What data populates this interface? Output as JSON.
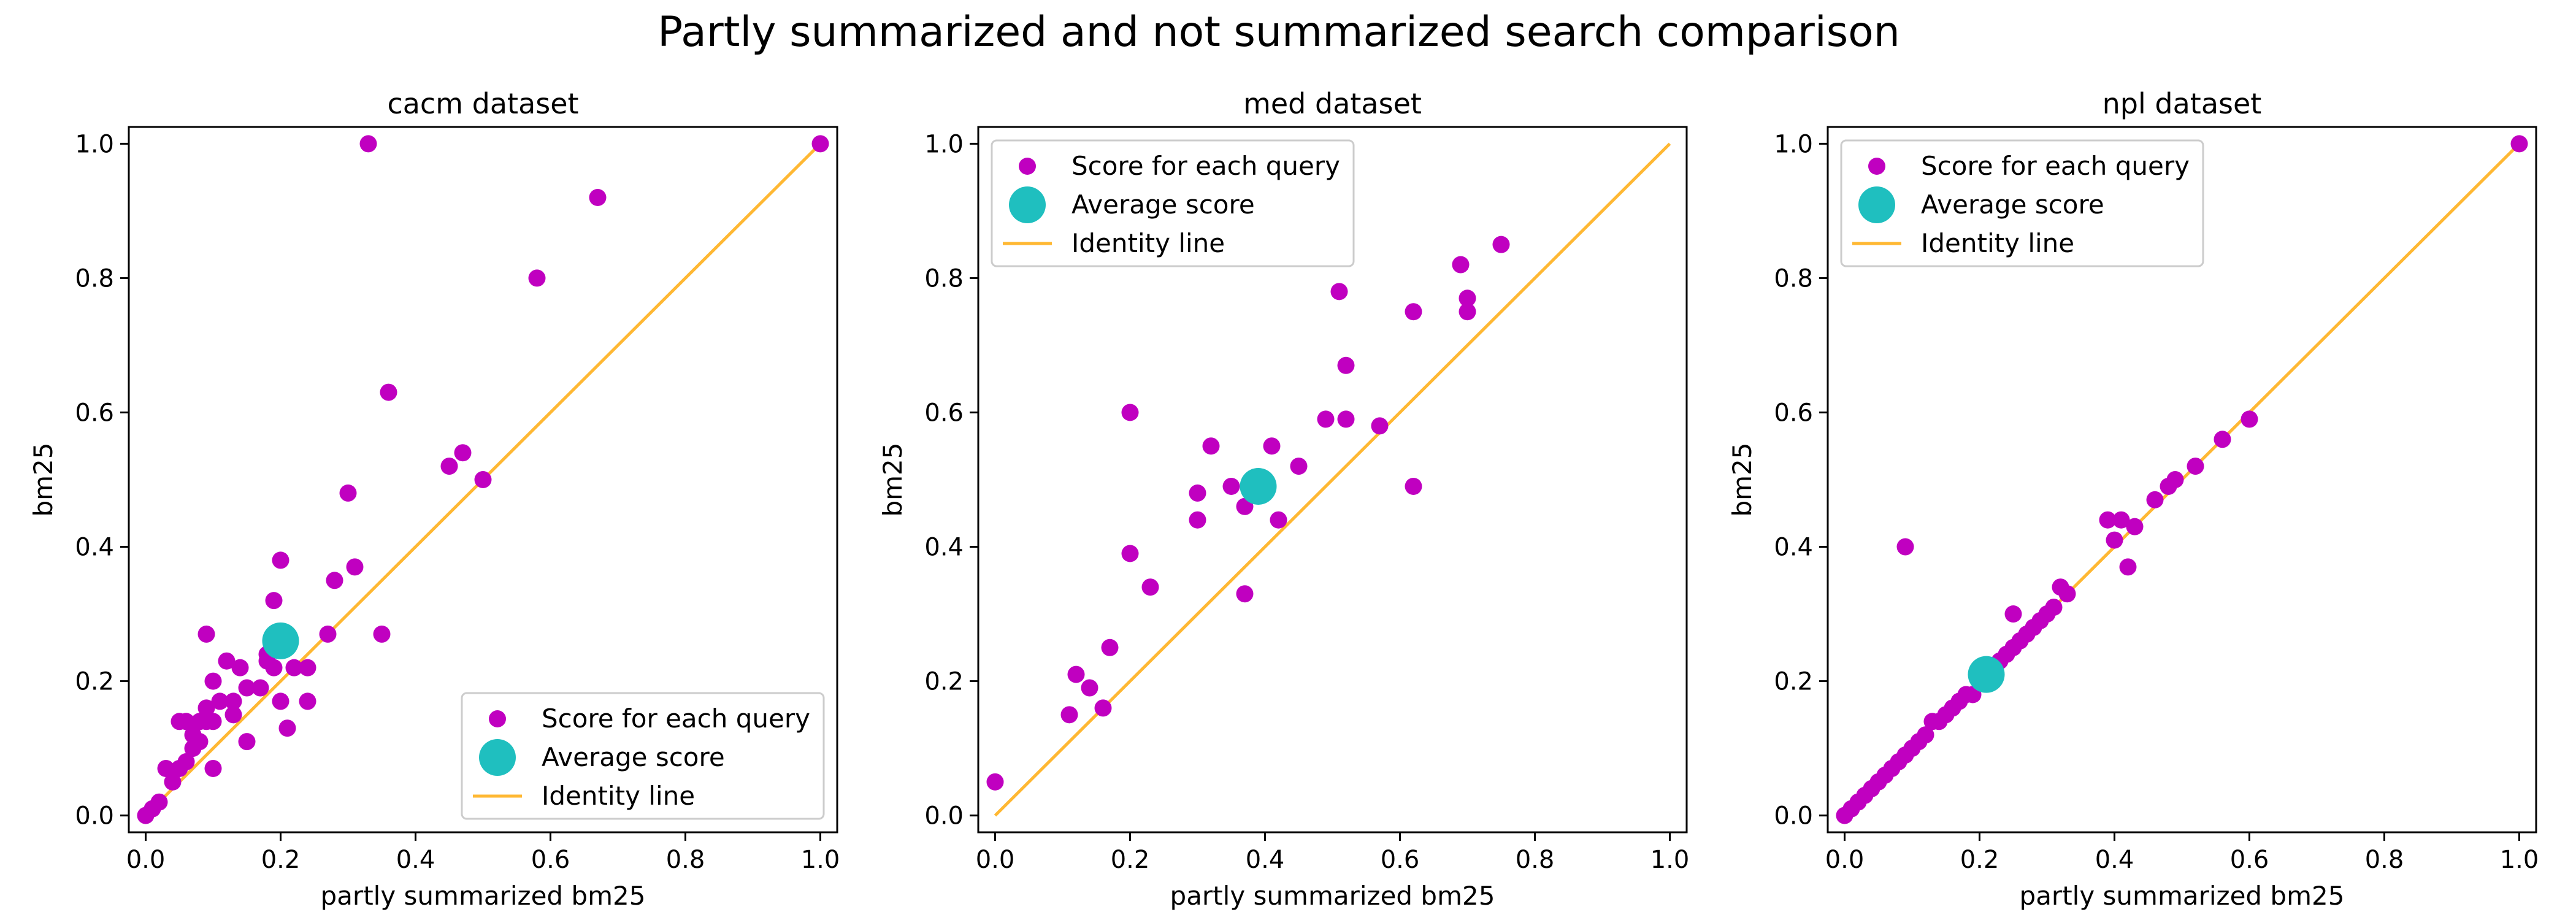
{
  "figure": {
    "title": "Partly summarized and not summarized search comparison"
  },
  "colors": {
    "query_points": "#c000c0",
    "average_point": "#1fbfbf",
    "identity_line": "#ffb833",
    "axes": "#000000"
  },
  "chart_data": [
    {
      "type": "scatter",
      "title": "cacm dataset",
      "xlabel": "partly summarized bm25",
      "ylabel": "bm25",
      "xlim": [
        -0.025,
        1.025
      ],
      "ylim": [
        -0.025,
        1.025
      ],
      "xticks": [
        "0.0",
        "0.2",
        "0.4",
        "0.6",
        "0.8",
        "1.0"
      ],
      "yticks": [
        "0.0",
        "0.2",
        "0.4",
        "0.6",
        "0.8",
        "1.0"
      ],
      "legend": {
        "location": "lower-right",
        "entries": [
          "Score for each query",
          "Average score",
          "Identity line"
        ]
      },
      "series": [
        {
          "name": "Score for each query",
          "x": [
            0.0,
            0.01,
            0.02,
            0.03,
            0.04,
            0.05,
            0.05,
            0.06,
            0.06,
            0.07,
            0.07,
            0.08,
            0.08,
            0.09,
            0.09,
            0.09,
            0.1,
            0.1,
            0.1,
            0.11,
            0.12,
            0.13,
            0.13,
            0.14,
            0.15,
            0.15,
            0.17,
            0.18,
            0.18,
            0.19,
            0.19,
            0.2,
            0.2,
            0.21,
            0.22,
            0.24,
            0.24,
            0.27,
            0.28,
            0.3,
            0.31,
            0.33,
            0.35,
            0.36,
            0.45,
            0.47,
            0.5,
            0.58,
            0.67,
            1.0
          ],
          "y": [
            0.0,
            0.01,
            0.02,
            0.07,
            0.05,
            0.07,
            0.14,
            0.08,
            0.14,
            0.1,
            0.12,
            0.14,
            0.11,
            0.27,
            0.16,
            0.14,
            0.2,
            0.14,
            0.07,
            0.17,
            0.23,
            0.17,
            0.15,
            0.22,
            0.11,
            0.19,
            0.19,
            0.23,
            0.24,
            0.32,
            0.22,
            0.17,
            0.38,
            0.13,
            0.22,
            0.22,
            0.17,
            0.27,
            0.35,
            0.48,
            0.37,
            1.0,
            0.27,
            0.63,
            0.52,
            0.54,
            0.5,
            0.8,
            0.92,
            1.0
          ]
        },
        {
          "name": "Average score",
          "x": [
            0.2
          ],
          "y": [
            0.26
          ]
        },
        {
          "name": "Identity line",
          "x": [
            0.0,
            1.0
          ],
          "y": [
            0.0,
            1.0
          ]
        }
      ]
    },
    {
      "type": "scatter",
      "title": "med dataset",
      "xlabel": "partly summarized bm25",
      "ylabel": "bm25",
      "xlim": [
        -0.025,
        1.025
      ],
      "ylim": [
        -0.025,
        1.025
      ],
      "xticks": [
        "0.0",
        "0.2",
        "0.4",
        "0.6",
        "0.8",
        "1.0"
      ],
      "yticks": [
        "0.0",
        "0.2",
        "0.4",
        "0.6",
        "0.8",
        "1.0"
      ],
      "legend": {
        "location": "upper-left",
        "entries": [
          "Score for each query",
          "Average score",
          "Identity line"
        ]
      },
      "series": [
        {
          "name": "Score for each query",
          "x": [
            0.0,
            0.11,
            0.12,
            0.14,
            0.16,
            0.17,
            0.2,
            0.2,
            0.23,
            0.3,
            0.3,
            0.32,
            0.35,
            0.37,
            0.37,
            0.41,
            0.42,
            0.45,
            0.49,
            0.51,
            0.52,
            0.52,
            0.57,
            0.62,
            0.62,
            0.69,
            0.7,
            0.7,
            0.75
          ],
          "y": [
            0.05,
            0.15,
            0.21,
            0.19,
            0.16,
            0.25,
            0.39,
            0.6,
            0.34,
            0.44,
            0.48,
            0.55,
            0.49,
            0.46,
            0.33,
            0.55,
            0.44,
            0.52,
            0.59,
            0.78,
            0.67,
            0.59,
            0.58,
            0.75,
            0.49,
            0.82,
            0.77,
            0.75,
            0.85
          ]
        },
        {
          "name": "Average score",
          "x": [
            0.39
          ],
          "y": [
            0.49
          ]
        },
        {
          "name": "Identity line",
          "x": [
            0.0,
            1.0
          ],
          "y": [
            0.0,
            1.0
          ]
        }
      ]
    },
    {
      "type": "scatter",
      "title": "npl dataset",
      "xlabel": "partly summarized bm25",
      "ylabel": "bm25",
      "xlim": [
        -0.025,
        1.025
      ],
      "ylim": [
        -0.025,
        1.025
      ],
      "xticks": [
        "0.0",
        "0.2",
        "0.4",
        "0.6",
        "0.8",
        "1.0"
      ],
      "yticks": [
        "0.0",
        "0.2",
        "0.4",
        "0.6",
        "0.8",
        "1.0"
      ],
      "legend": {
        "location": "upper-left",
        "entries": [
          "Score for each query",
          "Average score",
          "Identity line"
        ]
      },
      "series": [
        {
          "name": "Score for each query",
          "x": [
            0.0,
            0.01,
            0.02,
            0.03,
            0.04,
            0.05,
            0.06,
            0.07,
            0.08,
            0.09,
            0.09,
            0.1,
            0.11,
            0.12,
            0.13,
            0.14,
            0.15,
            0.16,
            0.17,
            0.18,
            0.19,
            0.2,
            0.21,
            0.22,
            0.23,
            0.24,
            0.25,
            0.25,
            0.26,
            0.27,
            0.28,
            0.29,
            0.3,
            0.31,
            0.32,
            0.33,
            0.39,
            0.4,
            0.41,
            0.42,
            0.43,
            0.46,
            0.48,
            0.49,
            0.52,
            0.56,
            0.6,
            1.0
          ],
          "y": [
            0.0,
            0.01,
            0.02,
            0.03,
            0.04,
            0.05,
            0.06,
            0.07,
            0.08,
            0.4,
            0.09,
            0.1,
            0.11,
            0.12,
            0.14,
            0.14,
            0.15,
            0.16,
            0.17,
            0.18,
            0.18,
            0.2,
            0.21,
            0.22,
            0.23,
            0.24,
            0.25,
            0.3,
            0.26,
            0.27,
            0.28,
            0.29,
            0.3,
            0.31,
            0.34,
            0.33,
            0.44,
            0.41,
            0.44,
            0.37,
            0.43,
            0.47,
            0.49,
            0.5,
            0.52,
            0.56,
            0.59,
            1.0
          ]
        },
        {
          "name": "Average score",
          "x": [
            0.21
          ],
          "y": [
            0.21
          ]
        },
        {
          "name": "Identity line",
          "x": [
            0.0,
            1.0
          ],
          "y": [
            0.0,
            1.0
          ]
        }
      ]
    }
  ]
}
